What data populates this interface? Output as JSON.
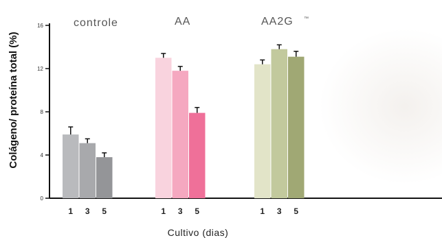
{
  "chart_data": {
    "type": "bar",
    "title": "",
    "xlabel": "Cultivo (dias)",
    "ylabel": "Colágeno/ proteína total (%)",
    "ylim": [
      0,
      16
    ],
    "yticks": [
      "0",
      "4",
      "8",
      "12",
      "16"
    ],
    "categories": [
      "1",
      "3",
      "5"
    ],
    "grid": false,
    "groups": [
      {
        "name": "controle",
        "superscript": "",
        "values": [
          5.9,
          5.1,
          3.8
        ],
        "errors": [
          0.7,
          0.4,
          0.4
        ],
        "colors": [
          "#b9babd",
          "#a8a9ac",
          "#949598"
        ]
      },
      {
        "name": "AA",
        "superscript": "",
        "values": [
          13.0,
          11.8,
          7.9
        ],
        "errors": [
          0.4,
          0.4,
          0.5
        ],
        "colors": [
          "#f9d3de",
          "#f5a8c0",
          "#ef7099"
        ]
      },
      {
        "name": "AA2G",
        "superscript": "™",
        "values": [
          12.4,
          13.8,
          13.1
        ],
        "errors": [
          0.4,
          0.4,
          0.5
        ],
        "colors": [
          "#e2e4c8",
          "#c2c99d",
          "#a0a874"
        ]
      }
    ]
  }
}
